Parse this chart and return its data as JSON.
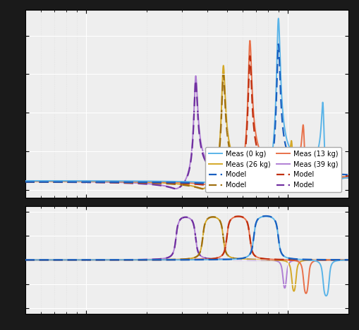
{
  "colors_meas": [
    "#5ab4e8",
    "#e8714a",
    "#d4a827",
    "#b07fd4"
  ],
  "colors_model": [
    "#1a60c0",
    "#c03010",
    "#a07010",
    "#7030a0"
  ],
  "labels_meas": [
    "Meas (0 kg)",
    "Meas (13 kg)",
    "Meas (26 kg)",
    "Meas (39 kg)"
  ],
  "label_model": "Model",
  "xlim": [
    5,
    200
  ],
  "fig_width": 5.09,
  "fig_height": 4.69,
  "dpi": 100,
  "ax_facecolor": "#eeeeee",
  "fig_facecolor": "#1a1a1a",
  "grid_major_color": "#ffffff",
  "grid_minor_color": "#d8d8d8",
  "lw_meas": 1.4,
  "lw_model": 1.6,
  "fn_list": [
    90,
    65,
    48,
    35
  ],
  "zeta_list": [
    0.02,
    0.02,
    0.02,
    0.02
  ],
  "fan_list": [
    68,
    50,
    38,
    28
  ],
  "zan_list": [
    0.02,
    0.02,
    0.02,
    0.02
  ],
  "k_list": [
    1.0,
    1.0,
    1.0,
    1.0
  ],
  "hf_modes_fn": [
    150,
    120,
    105,
    95
  ],
  "hf_modes_zeta": [
    0.015,
    0.015,
    0.015,
    0.015
  ],
  "hf_modes_k": [
    0.15,
    0.12,
    0.1,
    0.08
  ]
}
